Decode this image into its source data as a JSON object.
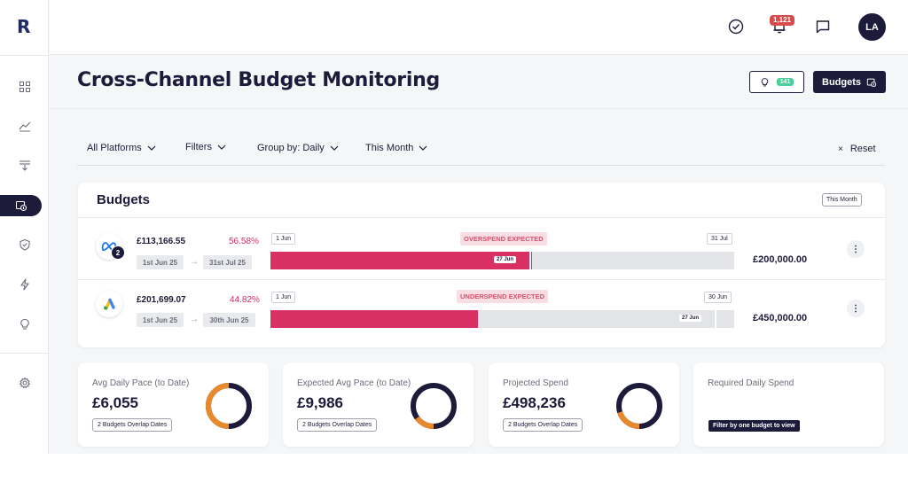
{
  "app": {
    "logo": "R"
  },
  "topbar": {
    "notification_count": "1,121",
    "avatar_initials": "LA"
  },
  "header": {
    "title": "Cross-Channel Budget Monitoring",
    "ideas_count": "141",
    "budgets_button": "Budgets"
  },
  "filters": {
    "platforms": "All Platforms",
    "filters": "Filters",
    "group_by": "Group by: Daily",
    "period": "This Month",
    "reset": "Reset"
  },
  "budgets": {
    "title": "Budgets",
    "period_tag": "This Month",
    "rows": [
      {
        "platform": "Meta",
        "count": "2",
        "spend": "£113,166.55",
        "percent": "56.58%",
        "start_date": "1st Jun 25",
        "end_date": "31st Jul 25",
        "range_start": "1 Jun",
        "range_end": "31 Jul",
        "status": "OVERSPEND EXPECTED",
        "today": "27 Jun",
        "budget": "£200,000.00",
        "fill_fraction": 0.565,
        "today_fraction": 0.5
      },
      {
        "platform": "Google Ads",
        "spend": "£201,699.07",
        "percent": "44.82%",
        "start_date": "1st Jun 25",
        "end_date": "30th Jun 25",
        "range_start": "1 Jun",
        "range_end": "30 Jun",
        "status": "UNDERSPEND EXPECTED",
        "today": "27 Jun",
        "budget": "£450,000.00",
        "fill_fraction": 0.448,
        "today_fraction": 0.9
      }
    ]
  },
  "metrics": [
    {
      "label": "Avg Daily Pace (to Date)",
      "value": "£6,055",
      "tag": "2 Budgets Overlap Dates",
      "ring_fraction": 0.5
    },
    {
      "label": "Expected Avg Pace (to Date)",
      "value": "£9,986",
      "tag": "2 Budgets Overlap Dates",
      "ring_fraction": 0.15
    },
    {
      "label": "Projected Spend",
      "value": "£498,236",
      "tag": "2 Budgets Overlap Dates",
      "ring_fraction": 0.2
    },
    {
      "label": "Required Daily Spend",
      "tag": "Filter by one budget to view"
    }
  ],
  "colors": {
    "navy": "#1c1b3a",
    "pink": "#d93064",
    "orange": "#e8892b",
    "green": "#4ecf9a"
  }
}
